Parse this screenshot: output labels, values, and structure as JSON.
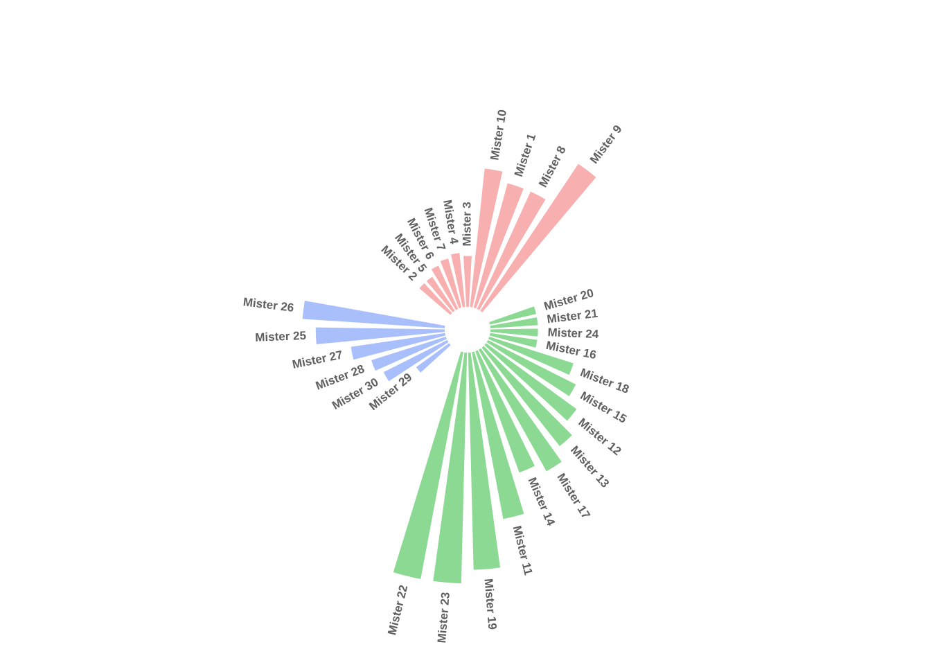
{
  "chart_data": {
    "type": "bar",
    "layout": "circular",
    "grid": false,
    "legend": "none",
    "series": [
      {
        "group": "A",
        "color": "#f8afaf",
        "categories": [
          "Mister 2",
          "Mister 5",
          "Mister 6",
          "Mister 7",
          "Mister 4",
          "Mister 3",
          "Mister 10",
          "Mister 1",
          "Mister 8",
          "Mister 9"
        ],
        "values": [
          12,
          12,
          14,
          15,
          16,
          15,
          41,
          38,
          38,
          52
        ]
      },
      {
        "group": "B",
        "color": "#8cd994",
        "categories": [
          "Mister 20",
          "Mister 21",
          "Mister 24",
          "Mister 16",
          "Mister 18",
          "Mister 15",
          "Mister 12",
          "Mister 13",
          "Mister 17",
          "Mister 14",
          "Mister 11",
          "Mister 19",
          "Mister 23",
          "Mister 22"
        ],
        "values": [
          14,
          14,
          14,
          14,
          26,
          29,
          33,
          37,
          41,
          38,
          50,
          64,
          68,
          68
        ]
      },
      {
        "group": "C",
        "color": "#a8bffc",
        "categories": [
          "Mister 29",
          "Mister 30",
          "Mister 28",
          "Mister 27",
          "Mister 25",
          "Mister 26"
        ],
        "values": [
          12,
          21,
          23,
          28,
          38,
          42
        ]
      }
    ]
  }
}
